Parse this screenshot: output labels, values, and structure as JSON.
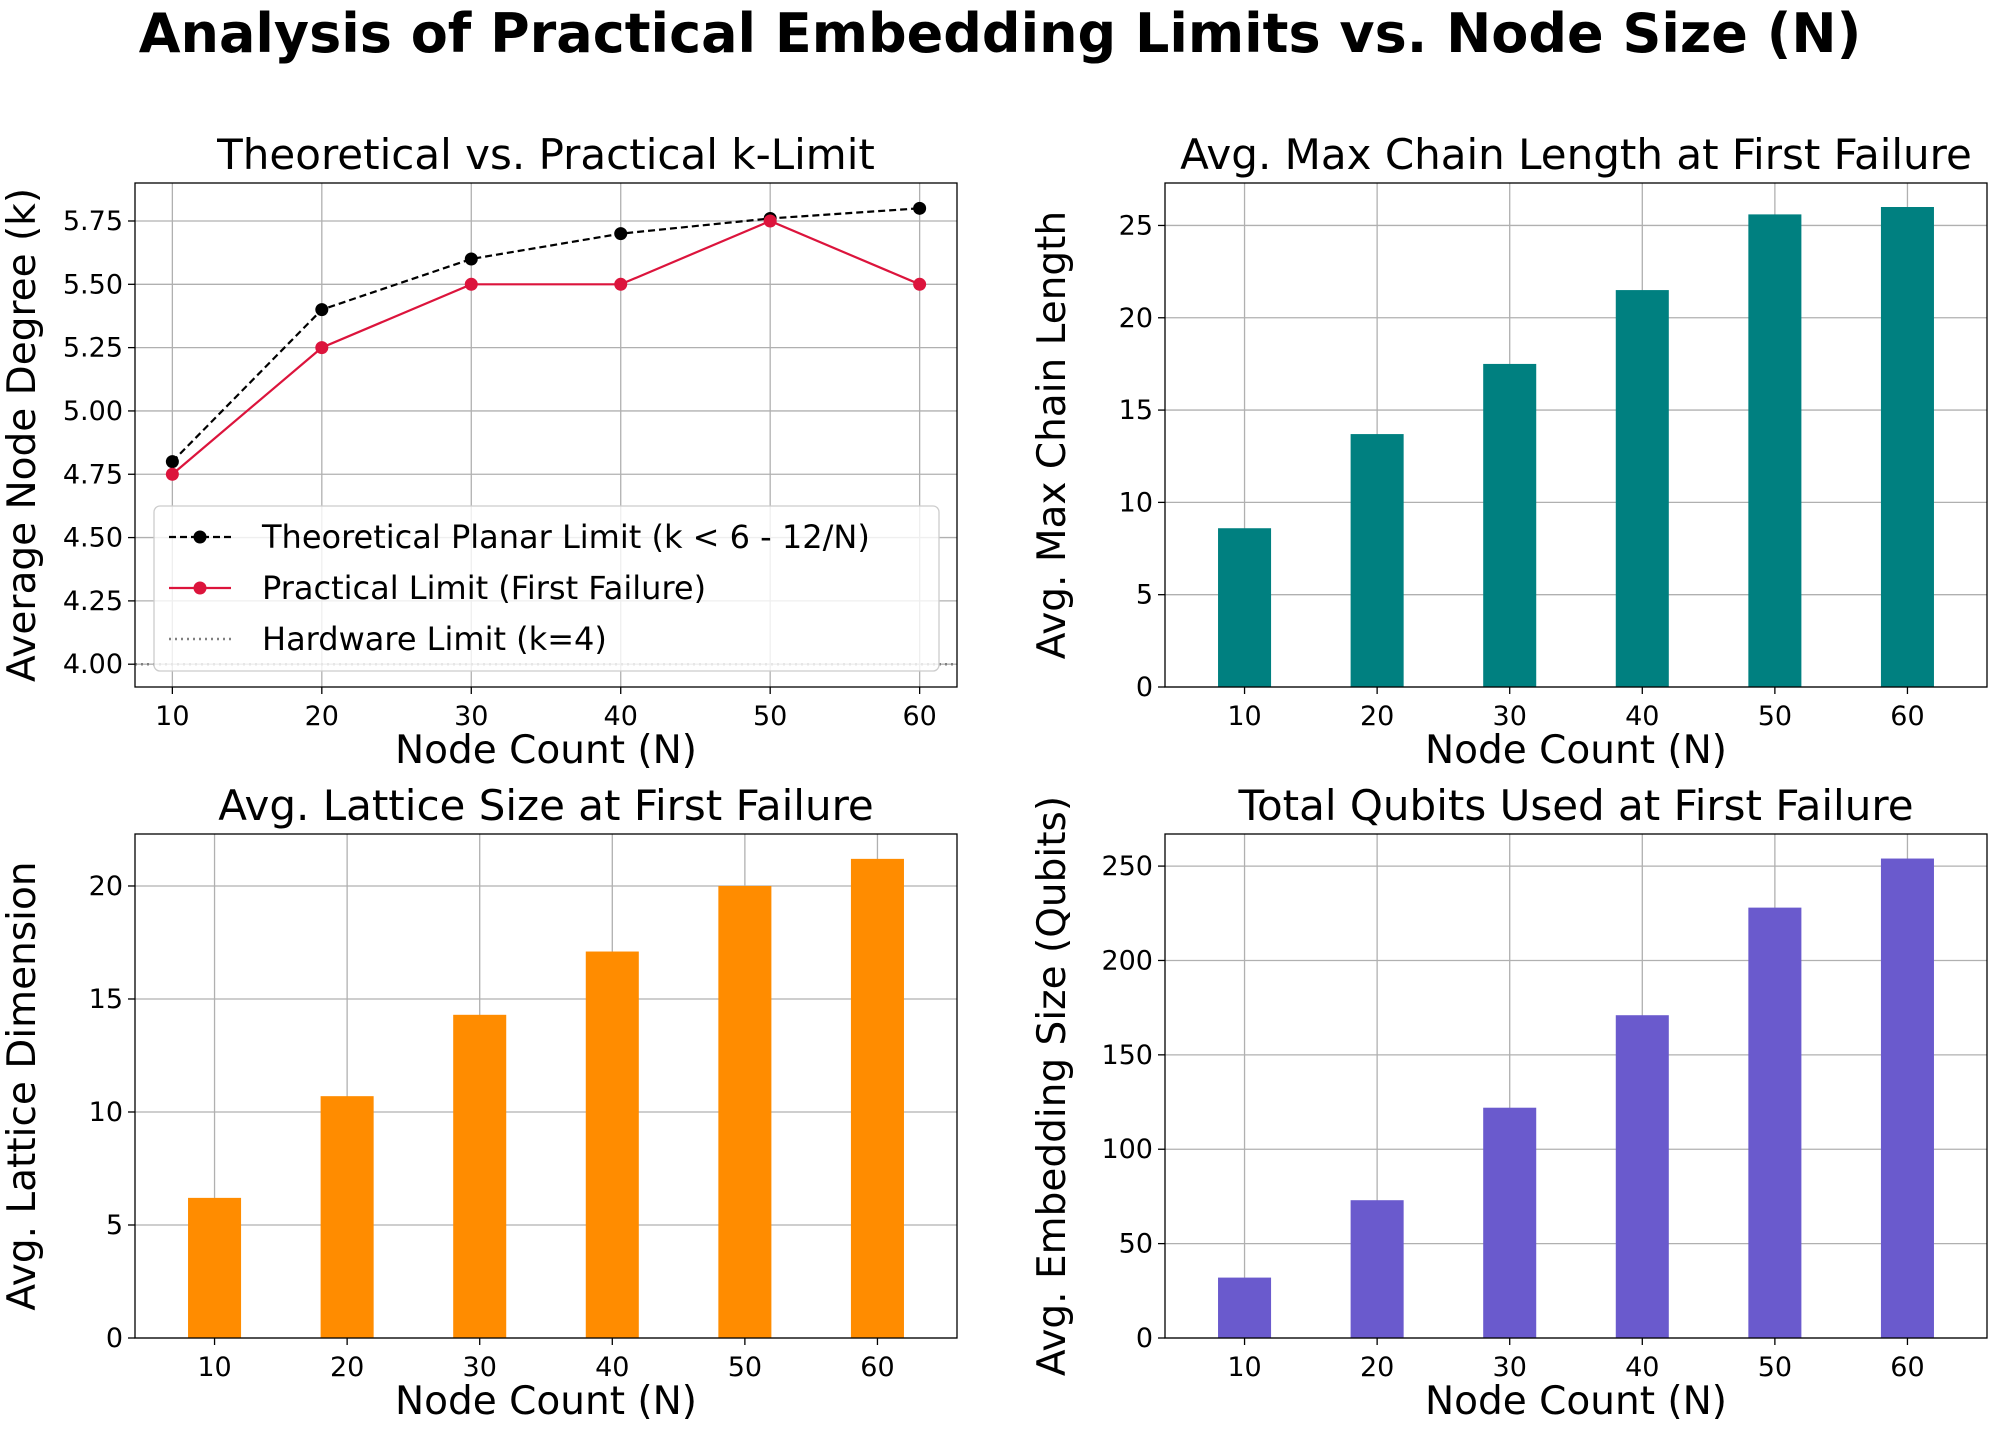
{
  "figure": {
    "title": "Analysis of Practical Embedding Limits vs. Node Size (N)"
  },
  "chart_data": [
    {
      "id": "k_limit",
      "type": "line",
      "title": "Theoretical vs. Practical k-Limit",
      "xlabel": "Node Count (N)",
      "ylabel": "Average Node Degree (k)",
      "x": [
        10,
        20,
        30,
        40,
        50,
        60
      ],
      "xlim": [
        7.5,
        62.5
      ],
      "ylim": [
        3.91,
        5.9
      ],
      "xticks": [
        10,
        20,
        30,
        40,
        50,
        60
      ],
      "yticks": [
        "4.00",
        "4.25",
        "4.50",
        "4.75",
        "5.00",
        "5.25",
        "5.50",
        "5.75"
      ],
      "grid": true,
      "legend_position": "lower-left",
      "series": [
        {
          "name": "Theoretical Planar Limit (k < 6 - 12/N)",
          "values": [
            4.8,
            5.4,
            5.6,
            5.7,
            5.76,
            5.8
          ],
          "color": "#000000",
          "style": "dashed",
          "marker": "circle"
        },
        {
          "name": "Practical Limit (First Failure)",
          "values": [
            4.75,
            5.25,
            5.5,
            5.5,
            5.75,
            5.5
          ],
          "color": "#dc143c",
          "style": "solid",
          "marker": "circle"
        }
      ],
      "hlines": [
        {
          "name": "Hardware Limit (k=4)",
          "value": 4.0,
          "color": "#808080",
          "style": "dotted"
        }
      ]
    },
    {
      "id": "chain_length",
      "type": "bar",
      "title": "Avg. Max Chain Length at First Failure",
      "xlabel": "Node Count (N)",
      "ylabel": "Avg. Max Chain Length",
      "categories": [
        "10",
        "20",
        "30",
        "40",
        "50",
        "60"
      ],
      "values": [
        8.6,
        13.7,
        17.5,
        21.5,
        25.6,
        26.0
      ],
      "color": "#008080",
      "ylim": [
        0,
        27.3
      ],
      "yticks": [
        "0",
        "5",
        "10",
        "15",
        "20",
        "25"
      ],
      "grid": true
    },
    {
      "id": "lattice_size",
      "type": "bar",
      "title": "Avg. Lattice Size at First Failure",
      "xlabel": "Node Count (N)",
      "ylabel": "Avg. Lattice Dimension",
      "categories": [
        "10",
        "20",
        "30",
        "40",
        "50",
        "60"
      ],
      "values": [
        6.2,
        10.7,
        14.3,
        17.1,
        20.0,
        21.2
      ],
      "color": "#ff8c00",
      "ylim": [
        0,
        22.3
      ],
      "yticks": [
        "0",
        "5",
        "10",
        "15",
        "20"
      ],
      "grid": true
    },
    {
      "id": "total_qubits",
      "type": "bar",
      "title": "Total Qubits Used at First Failure",
      "xlabel": "Node Count (N)",
      "ylabel": "Avg. Embedding Size (Qubits)",
      "categories": [
        "10",
        "20",
        "30",
        "40",
        "50",
        "60"
      ],
      "values": [
        32,
        73,
        122,
        171,
        228,
        254
      ],
      "color": "#6a5acd",
      "ylim": [
        0,
        267
      ],
      "yticks": [
        "0",
        "50",
        "100",
        "150",
        "200",
        "250"
      ],
      "grid": true
    }
  ]
}
